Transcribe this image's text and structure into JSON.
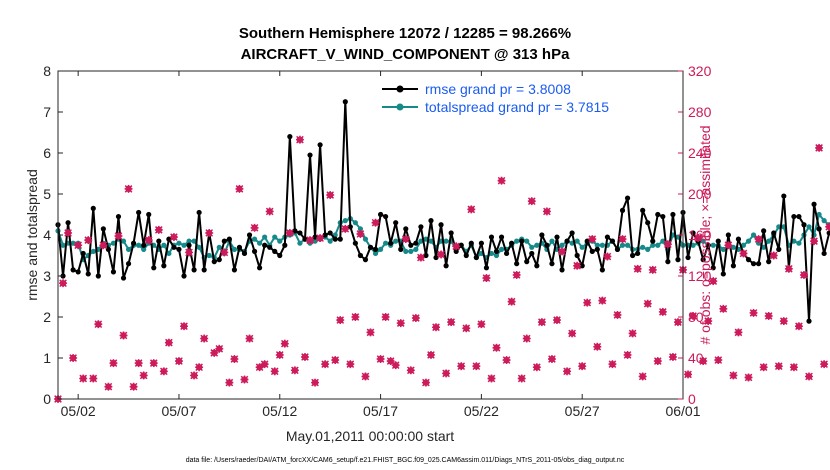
{
  "colors": {
    "rmse": "#000000",
    "spread": "#168a8a",
    "obs": "#cc1a5a",
    "legend_text": "#1a5cf0",
    "axis": "#262626"
  },
  "chart_data": {
    "type": "line",
    "title_line1": "Southern Hemisphere 12072 / 12285 = 98.266%",
    "title_line2": "AIRCRAFT_V_WIND_COMPONENT @ 313 hPa",
    "xlabel": "May.01,2011 00:00:00 start",
    "ylabel_left": "rmse and totalspread",
    "ylabel_right": "# of obs: o=possible; ×=assimilated",
    "xlim": [
      0.5,
      31.5
    ],
    "ylim_left": [
      0,
      8
    ],
    "ylim_right": [
      0,
      320
    ],
    "yticks_left": [
      "0",
      "1",
      "2",
      "3",
      "4",
      "5",
      "6",
      "7",
      "8"
    ],
    "yticks_right": [
      "0",
      "40",
      "80",
      "120",
      "160",
      "200",
      "240",
      "280",
      "320"
    ],
    "xticks": [
      {
        "label": "05/02",
        "value": 1.5
      },
      {
        "label": "05/07",
        "value": 6.5
      },
      {
        "label": "05/12",
        "value": 11.5
      },
      {
        "label": "05/17",
        "value": 16.5
      },
      {
        "label": "05/22",
        "value": 21.5
      },
      {
        "label": "05/27",
        "value": 26.5
      },
      {
        "label": "06/01",
        "value": 31.5
      }
    ],
    "legend": [
      {
        "label": "rmse grand pr = 3.8008"
      },
      {
        "label": "totalspread grand pr = 3.7815"
      }
    ],
    "footnote": "data file: /Users/raeder/DAI/ATM_forcXX/CAM6_setup/f.e21.FHIST_BGC.f09_025.CAM6assim.011/Diags_NTrS_2011-05/obs_diag_output.nc",
    "x_start": 0.5,
    "x_step": 0.25,
    "series": [
      {
        "name": "rmse",
        "values": [
          4.25,
          3.0,
          4.3,
          3.15,
          3.1,
          3.55,
          3.05,
          4.65,
          3.0,
          4.15,
          3.65,
          3.1,
          4.45,
          2.95,
          3.3,
          3.8,
          4.55,
          3.75,
          4.5,
          3.2,
          3.85,
          3.25,
          3.9,
          3.7,
          3.65,
          3.0,
          3.75,
          3.15,
          4.55,
          3.15,
          4.05,
          3.35,
          3.4,
          3.85,
          3.9,
          3.15,
          3.7,
          3.55,
          4.0,
          3.6,
          3.2,
          3.75,
          3.7,
          3.6,
          3.5,
          3.75,
          6.4,
          4.1,
          4.05,
          3.9,
          5.95,
          3.95,
          6.2,
          4.0,
          4.05,
          3.9,
          3.9,
          7.25,
          4.2,
          3.8,
          3.5,
          3.4,
          3.7,
          3.65,
          4.5,
          4.45,
          3.8,
          4.3,
          3.65,
          4.15,
          3.75,
          3.8,
          4.2,
          3.5,
          4.35,
          3.45,
          4.25,
          3.25,
          4.05,
          3.6,
          3.75,
          3.5,
          3.8,
          3.45,
          3.8,
          3.2,
          3.95,
          3.6,
          3.95,
          3.55,
          3.8,
          3.3,
          3.85,
          3.35,
          3.55,
          3.25,
          4.0,
          3.75,
          3.3,
          3.95,
          3.15,
          3.85,
          4.05,
          3.5,
          3.25,
          3.85,
          3.6,
          3.65,
          3.15,
          3.95,
          3.85,
          3.65,
          4.6,
          4.9,
          3.5,
          3.55,
          4.6,
          4.3,
          3.85,
          4.5,
          4.45,
          3.35,
          4.5,
          3.4,
          4.55,
          3.45,
          4.05,
          3.85,
          3.4,
          3.75,
          3.2,
          3.85,
          3.05,
          4.0,
          3.25,
          3.9,
          3.55,
          3.4,
          3.3,
          3.3,
          4.1,
          3.35,
          4.05,
          3.65,
          4.95,
          3.2,
          4.45,
          4.45,
          4.25,
          1.9,
          4.75,
          4.15,
          3.55,
          4.05,
          3.95,
          3.65,
          3.75,
          3.85,
          4.4,
          3.5,
          4.55
        ]
      },
      {
        "name": "totalspread",
        "values": [
          4.1,
          3.75,
          3.8,
          3.8,
          3.8,
          3.4,
          3.5,
          3.6,
          3.65,
          3.8,
          3.75,
          3.8,
          3.9,
          3.85,
          3.65,
          3.75,
          3.75,
          3.65,
          3.8,
          3.75,
          3.65,
          3.75,
          3.55,
          3.75,
          3.8,
          3.75,
          3.85,
          3.85,
          3.7,
          3.45,
          3.5,
          3.45,
          3.7,
          3.55,
          3.85,
          3.65,
          3.65,
          3.6,
          3.85,
          3.9,
          3.8,
          3.95,
          3.75,
          3.95,
          3.85,
          3.95,
          4.0,
          4.05,
          3.8,
          3.9,
          3.8,
          3.85,
          3.9,
          3.95,
          3.85,
          4.0,
          4.3,
          4.35,
          4.4,
          4.3,
          4.15,
          3.9,
          3.7,
          3.55,
          3.65,
          3.8,
          3.75,
          3.85,
          3.85,
          3.6,
          3.6,
          3.65,
          3.85,
          3.9,
          3.85,
          3.7,
          3.85,
          3.85,
          3.85,
          3.65,
          3.75,
          3.6,
          3.75,
          3.45,
          3.55,
          3.45,
          3.55,
          3.5,
          3.65,
          3.65,
          3.75,
          3.85,
          3.9,
          3.85,
          3.7,
          3.75,
          3.8,
          3.65,
          3.85,
          3.65,
          3.75,
          3.85,
          3.8,
          3.85,
          3.7,
          3.8,
          3.85,
          3.75,
          3.75,
          3.75,
          3.85,
          3.65,
          3.75,
          3.75,
          3.65,
          3.65,
          3.7,
          3.65,
          3.75,
          3.75,
          3.85,
          3.65,
          4.0,
          3.95,
          3.75,
          3.75,
          3.75,
          3.8,
          3.85,
          3.75,
          3.75,
          3.75,
          3.65,
          3.75,
          3.7,
          3.65,
          3.75,
          3.85,
          4.0,
          3.8,
          3.7,
          3.85,
          4.0,
          4.2,
          4.2,
          3.75,
          3.85,
          3.8,
          4.0,
          4.2,
          4.0,
          4.5,
          4.35,
          4.25,
          4.0,
          3.7,
          3.65,
          3.6,
          3.85,
          3.7,
          3.75
        ]
      },
      {
        "name": "obs_possible",
        "values": [
          0,
          113,
          162,
          40,
          150,
          20,
          155,
          20,
          73,
          150,
          12,
          35,
          159,
          62,
          205,
          12,
          35,
          23,
          155,
          35,
          165,
          27,
          55,
          158,
          37,
          71,
          143,
          23,
          31,
          59,
          162,
          45,
          49,
          143,
          16,
          39,
          205,
          19,
          59,
          167,
          31,
          34,
          183,
          27,
          43,
          54,
          162,
          28,
          253,
          41,
          155,
          16,
          157,
          34,
          199,
          38,
          77,
          166,
          34,
          80,
          161,
          22,
          65,
          172,
          39,
          80,
          37,
          33,
          74,
          156,
          28,
          79,
          138,
          16,
          43,
          70,
          141,
          25,
          75,
          149,
          32,
          69,
          185,
          32,
          73,
          118,
          20,
          50,
          213,
          38,
          95,
          121,
          20,
          59,
          193,
          31,
          75,
          183,
          39,
          77,
          144,
          27,
          64,
          130,
          32,
          94,
          156,
          51,
          96,
          139,
          34,
          82,
          156,
          43,
          64,
          127,
          22,
          93,
          126,
          37,
          85,
          151,
          41,
          75,
          126,
          24,
          81,
          157,
          37,
          76,
          115,
          38,
          88,
          150,
          23,
          65,
          142,
          21,
          84,
          156,
          31,
          81,
          140,
          32,
          76,
          127,
          31,
          71,
          121,
          22,
          154,
          245,
          34,
          168,
          198,
          15,
          77,
          32,
          75,
          19,
          0
        ]
      },
      {
        "name": "obs_assimilated",
        "values": [
          0,
          113,
          162,
          40,
          150,
          20,
          155,
          20,
          73,
          150,
          12,
          35,
          159,
          62,
          205,
          12,
          35,
          23,
          155,
          35,
          165,
          27,
          55,
          158,
          37,
          71,
          143,
          23,
          31,
          59,
          162,
          45,
          49,
          143,
          16,
          39,
          205,
          19,
          59,
          167,
          31,
          34,
          183,
          27,
          43,
          54,
          162,
          28,
          253,
          41,
          155,
          16,
          157,
          34,
          199,
          38,
          77,
          166,
          34,
          80,
          161,
          22,
          65,
          172,
          39,
          80,
          37,
          33,
          74,
          156,
          28,
          79,
          138,
          16,
          43,
          70,
          141,
          25,
          75,
          149,
          32,
          69,
          185,
          32,
          73,
          118,
          20,
          50,
          213,
          38,
          95,
          121,
          20,
          59,
          193,
          31,
          75,
          183,
          39,
          77,
          144,
          27,
          64,
          130,
          32,
          94,
          156,
          51,
          96,
          139,
          34,
          82,
          156,
          43,
          64,
          127,
          22,
          93,
          126,
          37,
          85,
          151,
          41,
          75,
          126,
          24,
          81,
          157,
          37,
          76,
          115,
          38,
          88,
          150,
          23,
          65,
          142,
          21,
          84,
          156,
          31,
          81,
          140,
          32,
          76,
          127,
          31,
          71,
          121,
          22,
          154,
          245,
          34,
          168,
          198,
          15,
          77,
          32,
          75,
          19,
          0
        ]
      }
    ]
  }
}
